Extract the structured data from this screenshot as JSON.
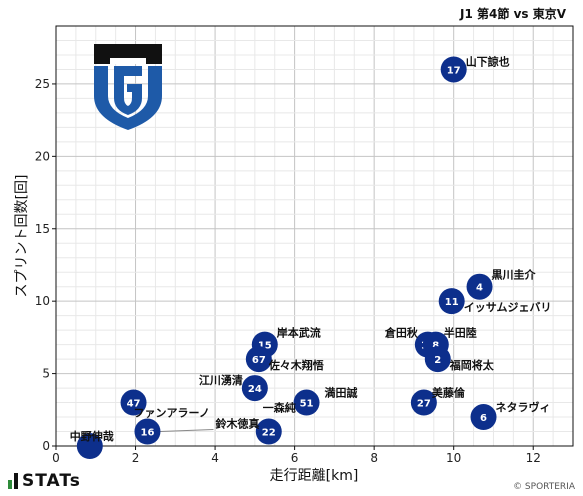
{
  "header": {
    "title": "J1 第4節 vs 東京V"
  },
  "footer": {
    "brand": "STATs",
    "credit": "© SPORTERIA"
  },
  "colors": {
    "marker": "#0d2f8c",
    "grid": "#d0d0d0",
    "crest_dark": "#111111",
    "crest_blue": "#1e5aa8"
  },
  "chart_data": {
    "type": "scatter",
    "xlabel": "走行距離[km]",
    "ylabel": "スプリント回数[回]",
    "xlim": [
      0,
      13
    ],
    "ylim": [
      0,
      29
    ],
    "xticks": [
      0,
      2,
      4,
      6,
      8,
      10,
      12
    ],
    "yticks": [
      0,
      5,
      10,
      15,
      20,
      25
    ],
    "grid": true,
    "points": [
      {
        "number": "17",
        "name": "山下諒也",
        "x": 10.0,
        "y": 26
      },
      {
        "number": "4",
        "name": "黒川圭介",
        "x": 10.65,
        "y": 11
      },
      {
        "number": "11",
        "name": "イッサムジェバリ",
        "x": 9.95,
        "y": 10
      },
      {
        "number": "15",
        "name": "岸本武流",
        "x": 5.25,
        "y": 7
      },
      {
        "number": "67",
        "name": "佐々木翔悟",
        "x": 5.1,
        "y": 6
      },
      {
        "number": "24",
        "name": "江川湧清",
        "x": 5.0,
        "y": 4
      },
      {
        "number": "51",
        "name": "満田誠",
        "x": 6.3,
        "y": 3
      },
      {
        "number": "22",
        "name": "一森純",
        "x": 5.35,
        "y": 1
      },
      {
        "number": "47",
        "name": "ファンアラーノ",
        "x": 1.95,
        "y": 3
      },
      {
        "number": "16",
        "name": "鈴木徳真",
        "x": 2.3,
        "y": 1
      },
      {
        "number": "10",
        "name": "倉田秋",
        "x": 9.35,
        "y": 7
      },
      {
        "number": "8",
        "name": "半田陸",
        "x": 9.55,
        "y": 7
      },
      {
        "number": "2",
        "name": "福岡将太",
        "x": 9.6,
        "y": 6
      },
      {
        "number": "27",
        "name": "美藤倫",
        "x": 9.25,
        "y": 3
      },
      {
        "number": "6",
        "name": "ネタラヴィ",
        "x": 10.75,
        "y": 2
      },
      {
        "number": "",
        "name": "中野伸哉",
        "x": 0.85,
        "y": 0
      }
    ]
  }
}
